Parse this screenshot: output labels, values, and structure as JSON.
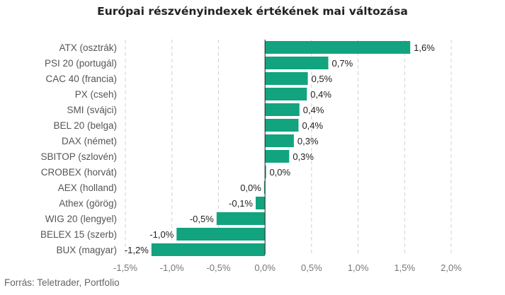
{
  "title": "Európai részvényindexek értékének mai változása",
  "source": "Forrás: Teletrader, Portfolio",
  "colors": {
    "bar": "#12a37f",
    "grid": "#d0d0d0",
    "zero": "#222222"
  },
  "chart_data": {
    "type": "bar",
    "orientation": "horizontal",
    "categories": [
      "ATX (osztrák)",
      "PSI 20 (portugál)",
      "CAC 40 (francia)",
      "PX (cseh)",
      "SMI (svájci)",
      "BEL 20 (belga)",
      "DAX (német)",
      "SBITOP (szlovén)",
      "CROBEX (horvát)",
      "AEX (holland)",
      "Athex (görög)",
      "WIG 20 (lengyel)",
      "BELEX 15 (szerb)",
      "BUX (magyar)"
    ],
    "values": [
      1.56,
      0.68,
      0.46,
      0.45,
      0.37,
      0.36,
      0.31,
      0.26,
      0.01,
      -0.01,
      -0.1,
      -0.52,
      -0.95,
      -1.22
    ],
    "value_labels": [
      "1,6%",
      "0,7%",
      "0,5%",
      "0,4%",
      "0,4%",
      "0,4%",
      "0,3%",
      "0,3%",
      "0,0%",
      "0,0%",
      "-0,1%",
      "-0,5%",
      "-1,0%",
      "-1,2%"
    ],
    "xlim": [
      -1.5,
      2.0
    ],
    "xticks": [
      -1.5,
      -1.0,
      -0.5,
      0.0,
      0.5,
      1.0,
      1.5,
      2.0
    ],
    "xtick_labels": [
      "-1,5%",
      "-1,0%",
      "-0,5%",
      "0,0%",
      "0,5%",
      "1,0%",
      "1,5%",
      "2,0%"
    ],
    "grid": "vertical",
    "legend": "none"
  }
}
